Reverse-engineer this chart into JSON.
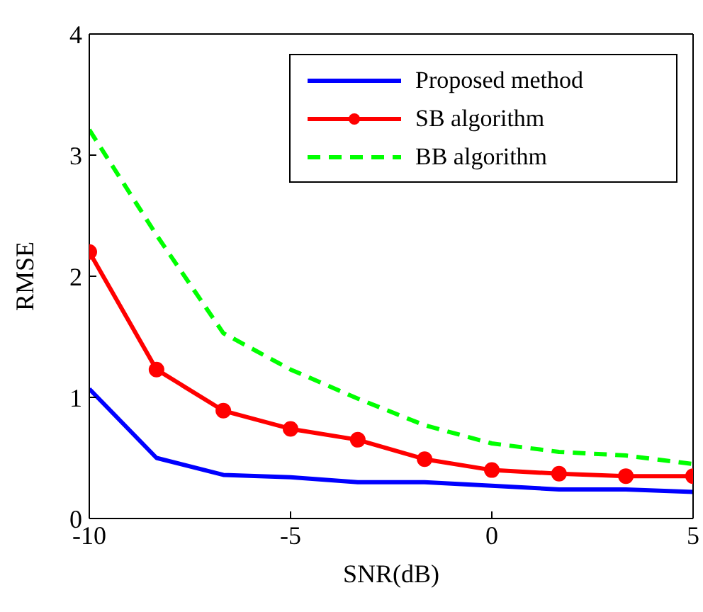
{
  "chart_data": {
    "type": "line",
    "xlabel": "SNR(dB)",
    "ylabel": "RMSE",
    "x": [
      -10,
      -8.33,
      -6.67,
      -5,
      -3.33,
      -1.67,
      0,
      1.67,
      3.33,
      5
    ],
    "xlim": [
      -10,
      5
    ],
    "xticks": [
      -10,
      -5,
      0,
      5
    ],
    "ylim": [
      0,
      4
    ],
    "yticks": [
      0,
      1,
      2,
      3,
      4
    ],
    "grid": false,
    "legend": "top right",
    "series": [
      {
        "name": "Proposed method",
        "color": "#0000ff",
        "marker": "none",
        "line_style": "solid",
        "values": [
          1.07,
          0.5,
          0.36,
          0.34,
          0.3,
          0.3,
          0.27,
          0.24,
          0.24,
          0.22
        ]
      },
      {
        "name": "SB algorithm",
        "color": "#ff0000",
        "marker": "circle",
        "line_style": "solid",
        "values": [
          2.2,
          1.23,
          0.89,
          0.74,
          0.65,
          0.49,
          0.4,
          0.37,
          0.35,
          0.35
        ]
      },
      {
        "name": "BB algorithm",
        "color": "#00ff00",
        "marker": "none",
        "line_style": "dashed",
        "values": [
          3.21,
          2.34,
          1.53,
          1.23,
          0.99,
          0.77,
          0.62,
          0.55,
          0.52,
          0.45
        ]
      }
    ]
  }
}
